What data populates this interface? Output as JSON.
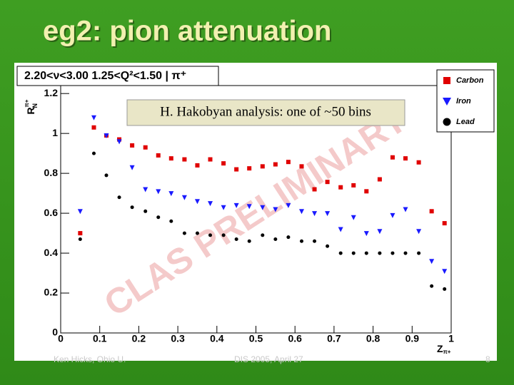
{
  "slide_title": "eg2: pion attenuation",
  "footer": {
    "author": "Ken Hicks, Ohio U.",
    "event": "DIS 2005, April 27",
    "page": "8"
  },
  "chart_data": {
    "type": "scatter",
    "header": "2.20<ν<3.00 1.25<Q²<1.50 | π⁺",
    "annotation": "H. Hakobyan analysis: one of ~50 bins",
    "watermark": "CLAS PRELIMINARY",
    "y_label": {
      "base": "R",
      "sup": "π+",
      "sub": "N"
    },
    "x_label": {
      "base": "Z",
      "sub": "π+"
    },
    "x": [
      0.05,
      0.085,
      0.117,
      0.15,
      0.183,
      0.217,
      0.25,
      0.283,
      0.317,
      0.35,
      0.383,
      0.417,
      0.45,
      0.483,
      0.517,
      0.55,
      0.583,
      0.617,
      0.65,
      0.683,
      0.717,
      0.75,
      0.783,
      0.817,
      0.85,
      0.883,
      0.917,
      0.95,
      0.983
    ],
    "series": [
      {
        "name": "Carbon",
        "color": "#e00000",
        "marker": "square",
        "values": [
          0.5,
          1.03,
          0.99,
          0.97,
          0.94,
          0.93,
          0.89,
          0.875,
          0.87,
          0.84,
          0.87,
          0.85,
          0.82,
          0.825,
          0.835,
          0.845,
          0.857,
          0.835,
          0.72,
          0.757,
          0.73,
          0.74,
          0.71,
          0.77,
          0.88,
          0.875,
          0.855,
          0.61,
          0.55
        ]
      },
      {
        "name": "Iron",
        "color": "#1a1aff",
        "marker": "triangle",
        "values": [
          0.61,
          1.08,
          0.99,
          0.96,
          0.83,
          0.72,
          0.71,
          0.7,
          0.68,
          0.66,
          0.65,
          0.63,
          0.64,
          0.635,
          0.63,
          0.62,
          0.64,
          0.61,
          0.6,
          0.6,
          0.52,
          0.58,
          0.5,
          0.51,
          0.59,
          0.62,
          0.51,
          0.36,
          0.31
        ]
      },
      {
        "name": "Lead",
        "color": "#000000",
        "marker": "circle",
        "values": [
          0.47,
          0.9,
          0.79,
          0.68,
          0.63,
          0.61,
          0.58,
          0.56,
          0.5,
          0.5,
          0.49,
          0.49,
          0.47,
          0.46,
          0.49,
          0.47,
          0.48,
          0.46,
          0.46,
          0.435,
          0.4,
          0.4,
          0.4,
          0.4,
          0.4,
          0.4,
          0.4,
          0.235,
          0.22
        ]
      }
    ],
    "xlim": [
      0,
      1
    ],
    "xticks": [
      0,
      0.1,
      0.2,
      0.3,
      0.4,
      0.5,
      0.6,
      0.7,
      0.8,
      0.9,
      1
    ],
    "ylim": [
      0,
      1.24
    ],
    "yticks": [
      0,
      0.2,
      0.4,
      0.6,
      0.8,
      1,
      1.2
    ],
    "legend": "top-right",
    "grid": false
  }
}
